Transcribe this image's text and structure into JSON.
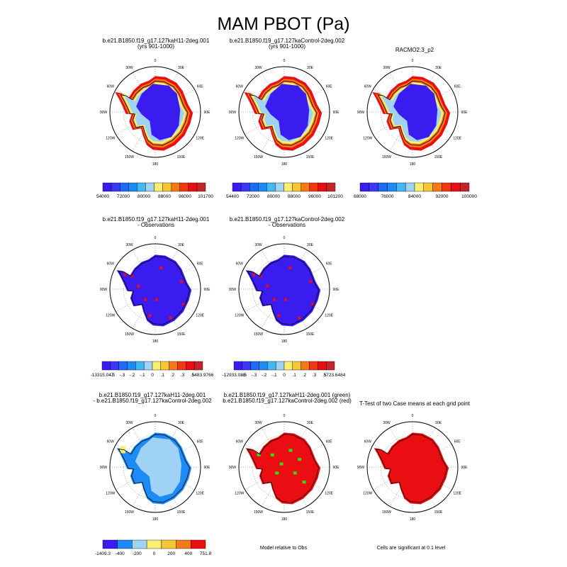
{
  "title": "MAM PBOT (Pa)",
  "colors": {
    "ice_blue": "#3a1cf0",
    "mid_blue": "#1e8bf5",
    "light_blue": "#9fd2f4",
    "red": "#ea0e12",
    "orange": "#f47a18",
    "yellow": "#f7ee72",
    "green": "#2ce01a",
    "white": "#ffffff",
    "black": "#000000"
  },
  "ring_labels": {
    "ticks": [
      "0",
      "30E",
      "60E",
      "90E",
      "120E",
      "150E",
      "180",
      "150W",
      "120W",
      "90W",
      "60W",
      "30W"
    ]
  },
  "panels": [
    {
      "id": "p1",
      "title": [
        "b.e21.B1850.f19_g17.127kaH11-2deg.001",
        "(yrs 901-1000)"
      ],
      "map_style": "full",
      "colorbar": {
        "colors": [
          "#3a1cf0",
          "#3a3af6",
          "#1e6af5",
          "#1e8bf5",
          "#43b6f3",
          "#9fd2f4",
          "#f7ee72",
          "#f7c634",
          "#f47a18",
          "#f03812",
          "#ea0e12",
          "#c2262a"
        ],
        "labels": [
          "54000",
          "72000",
          "80000",
          "88000",
          "96000",
          "101700"
        ]
      }
    },
    {
      "id": "p2",
      "title": [
        "b.e21.B1850.f19_g17.127kaControl-2deg.002",
        "(yrs 901-1000)"
      ],
      "map_style": "full",
      "colorbar": {
        "colors": [
          "#3a1cf0",
          "#3a3af6",
          "#1e6af5",
          "#1e8bf5",
          "#43b6f3",
          "#9fd2f4",
          "#f7ee72",
          "#f7c634",
          "#f47a18",
          "#f03812",
          "#ea0e12",
          "#c2262a"
        ],
        "labels": [
          "54400",
          "72000",
          "80000",
          "88000",
          "96000",
          "101200"
        ]
      }
    },
    {
      "id": "p3",
      "title": [
        "RACMO2.3_p2"
      ],
      "map_style": "full",
      "colorbar": {
        "colors": [
          "#3a1cf0",
          "#3a3af6",
          "#1e6af5",
          "#1e8bf5",
          "#43b6f3",
          "#9fd2f4",
          "#f7ee72",
          "#f7c634",
          "#f47a18",
          "#f03812",
          "#ea0e12",
          "#c2262a"
        ],
        "labels": [
          "68000",
          "76000",
          "84000",
          "92000",
          "100000"
        ]
      }
    },
    {
      "id": "p4",
      "title": [
        "b.e21.B1850.f19_g17.127kaH11-2deg.001",
        "- Observations"
      ],
      "map_style": "diff",
      "colorbar": {
        "colors": [
          "#3a1cf0",
          "#3a3af6",
          "#1e6af5",
          "#1e8bf5",
          "#43b6f3",
          "#9fd2f4",
          "#f7ee72",
          "#f7c634",
          "#f47a18",
          "#f03812",
          "#ea0e12",
          "#c2262a"
        ],
        "labels": [
          "-13315.047",
          "-.5",
          "-.3",
          "-.2",
          "-.1",
          "0",
          ".1",
          ".2",
          ".3",
          ".5",
          "5483.9766"
        ]
      }
    },
    {
      "id": "p5",
      "title": [
        "b.e21.B1850.f19_g17.127kaControl-2deg.002",
        "- Observations"
      ],
      "map_style": "diff",
      "colorbar": {
        "colors": [
          "#3a1cf0",
          "#3a3af6",
          "#1e6af5",
          "#1e8bf5",
          "#43b6f3",
          "#9fd2f4",
          "#f7ee72",
          "#f7c634",
          "#f47a18",
          "#f03812",
          "#ea0e12",
          "#c2262a"
        ],
        "labels": [
          "-12933.086",
          "-.5",
          "-.3",
          "-.2",
          "-.1",
          "0",
          ".1",
          ".2",
          ".3",
          ".5",
          "5723.6484"
        ]
      }
    },
    {
      "id": "p6",
      "title": [
        "b.e21.B1850.f19_g17.127kaH11-2deg.001",
        "- b.e21.B1850.f19_g17.127kaControl-2deg.002"
      ],
      "map_style": "casediff",
      "colorbar": {
        "colors": [
          "#3a1cf0",
          "#1e8bf5",
          "#9fd2f4",
          "#f7ee72",
          "#f7c634",
          "#f47a18",
          "#ea0e12"
        ],
        "labels": [
          "-1409.3",
          "-400",
          "-200",
          "0",
          "200",
          "400",
          "751.8"
        ]
      }
    },
    {
      "id": "p7",
      "title": [
        "b.e21.B1850.f19_g17.127kaH11-2deg.001 (green)",
        "b.e21.B1850.f19_g17.127kaControl-2deg.002 (red)"
      ],
      "map_style": "compare",
      "note": "Model relative to Obs"
    },
    {
      "id": "p8",
      "title": [
        "T-Test of two Case means at each grid point"
      ],
      "map_style": "ttest",
      "note": "Cells are significant at 0.1 level"
    }
  ]
}
